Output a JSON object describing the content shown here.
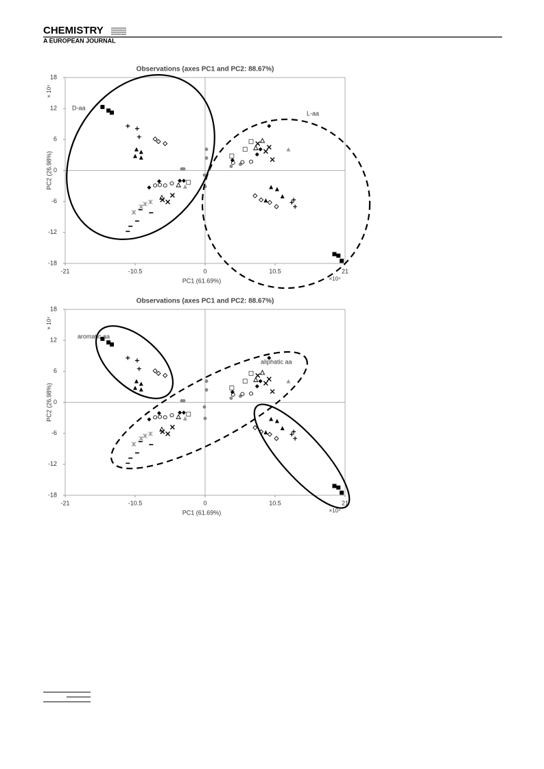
{
  "header": {
    "title": "CHEMISTRY",
    "subtitle": "A EUROPEAN JOURNAL"
  },
  "chart_data": [
    {
      "type": "scatter",
      "title": "Observations (axes PC1 and PC2: 88.67%)",
      "x_label": "PC1 (61.69%)",
      "y_label": "PC2 (26.98%)",
      "x_multiplier": "×10⁴",
      "y_multiplier": "× 10⁴",
      "annotations": [
        "D-aa",
        "L-aa"
      ],
      "xlim": [
        -21,
        21
      ],
      "ylim": [
        -18,
        18
      ],
      "xticks": [
        -21,
        -10.5,
        0,
        10.5,
        21
      ],
      "yticks": [
        -18,
        -12,
        -6,
        0,
        6,
        12,
        18
      ],
      "series": [
        {
          "marker": "square",
          "color": "#000000",
          "x": [
            -15.4,
            -14.5,
            -14.0,
            19.4,
            20.0,
            20.5
          ],
          "y": [
            12.3,
            11.6,
            11.2,
            -16.2,
            -16.5,
            -17.5
          ]
        },
        {
          "marker": "plus",
          "color": "#000000",
          "x": [
            -11.6,
            -10.2,
            -9.9,
            13.0,
            13.5,
            13.3
          ],
          "y": [
            8.6,
            8.1,
            6.5,
            -6.2,
            -7.0,
            -5.7
          ]
        },
        {
          "marker": "triangle",
          "color": "#000000",
          "x": [
            -10.3,
            -9.6,
            -10.5,
            -9.6,
            9.9,
            10.8,
            11.6,
            9.1
          ],
          "y": [
            4.1,
            3.6,
            2.8,
            2.5,
            -3.2,
            -3.6,
            -5.0,
            -5.8
          ]
        },
        {
          "marker": "diamond-open",
          "color": "#000000",
          "x": [
            -7.5,
            -7.0,
            -6.0,
            7.5,
            8.4,
            9.7,
            10.7
          ],
          "y": [
            6.1,
            5.6,
            5.2,
            -4.9,
            -5.7,
            -6.2,
            -7.0
          ]
        },
        {
          "marker": "circle",
          "color": "#888888",
          "x": [
            -3.5,
            -3.2,
            0.2,
            0.2,
            -0.1,
            0.0,
            3.9,
            5.3
          ],
          "y": [
            0.3,
            0.3,
            4.1,
            2.4,
            -0.9,
            -3.1,
            0.8,
            1.2
          ]
        },
        {
          "marker": "dash",
          "color": "#000000",
          "x": [
            -9.7,
            -10.2,
            -11.2,
            -11.6,
            -8.1
          ],
          "y": [
            -7.6,
            -9.8,
            -10.8,
            -11.8,
            -8.2
          ]
        },
        {
          "marker": "asterisk",
          "color": "#888888",
          "x": [
            -9.0,
            -9.6,
            -10.7,
            -8.2
          ],
          "y": [
            -6.5,
            -7.0,
            -8.1,
            -6.1
          ]
        },
        {
          "marker": "circle-open",
          "color": "#000000",
          "x": [
            -7.5,
            -6.8,
            -6.0,
            -5.0,
            4.2,
            5.6,
            6.9
          ],
          "y": [
            -2.9,
            -2.8,
            -2.9,
            -2.5,
            1.5,
            1.6,
            1.7
          ]
        },
        {
          "marker": "diamond",
          "color": "#000000",
          "x": [
            -8.4,
            -6.9,
            -3.8,
            -3.2,
            4.1,
            7.8,
            8.3,
            9.6
          ],
          "y": [
            -3.3,
            -2.1,
            -2.0,
            -2.0,
            2.0,
            3.1,
            4.1,
            8.6
          ]
        },
        {
          "marker": "x",
          "color": "#000000",
          "x": [
            -6.4,
            -5.6,
            -4.9,
            7.9,
            9.1,
            9.6,
            10.1
          ],
          "y": [
            -5.7,
            -6.1,
            -4.8,
            5.2,
            3.7,
            4.5,
            2.1
          ]
        },
        {
          "marker": "triangle-open",
          "color": "#000000",
          "x": [
            -6.5,
            -4.0,
            7.6,
            8.6
          ],
          "y": [
            -5.2,
            -2.8,
            4.4,
            5.8
          ]
        },
        {
          "marker": "square-open",
          "color": "#555555",
          "x": [
            -2.5,
            4.0,
            6.0,
            6.9
          ],
          "y": [
            -2.3,
            2.8,
            4.1,
            5.6
          ]
        },
        {
          "marker": "triangle",
          "color": "#999999",
          "x": [
            -3.0,
            12.5
          ],
          "y": [
            -3.1,
            4.1
          ]
        }
      ]
    },
    {
      "type": "scatter",
      "title": "Observations (axes PC1 and PC2: 88.67%)",
      "x_label": "PC1 (61.69%)",
      "y_label": "PC2 (26.98%)",
      "x_multiplier": "×10⁴",
      "y_multiplier": "× 10⁴",
      "annotations": [
        "aromatic aa",
        "aliphatic aa"
      ],
      "xlim": [
        -21,
        21
      ],
      "ylim": [
        -18,
        18
      ],
      "xticks": [
        -21,
        -10.5,
        0,
        10.5,
        21
      ],
      "yticks": [
        -18,
        -12,
        -6,
        0,
        6,
        12,
        18
      ],
      "series": [
        {
          "marker": "square",
          "color": "#000000",
          "x": [
            -15.4,
            -14.5,
            -14.0,
            19.4,
            20.0,
            20.5
          ],
          "y": [
            12.3,
            11.6,
            11.2,
            -16.2,
            -16.5,
            -17.5
          ]
        },
        {
          "marker": "plus",
          "color": "#000000",
          "x": [
            -11.6,
            -10.2,
            -9.9,
            13.0,
            13.5,
            13.3
          ],
          "y": [
            8.6,
            8.1,
            6.5,
            -6.2,
            -7.0,
            -5.7
          ]
        },
        {
          "marker": "triangle",
          "color": "#000000",
          "x": [
            -10.3,
            -9.6,
            -10.5,
            -9.6,
            9.9,
            10.8,
            11.6,
            9.1
          ],
          "y": [
            4.1,
            3.6,
            2.8,
            2.5,
            -3.2,
            -3.6,
            -5.0,
            -5.8
          ]
        },
        {
          "marker": "diamond-open",
          "color": "#000000",
          "x": [
            -7.5,
            -7.0,
            -6.0,
            7.5,
            8.4,
            9.7,
            10.7
          ],
          "y": [
            6.1,
            5.6,
            5.2,
            -4.9,
            -5.7,
            -6.2,
            -7.0
          ]
        },
        {
          "marker": "circle",
          "color": "#888888",
          "x": [
            -3.5,
            -3.2,
            0.2,
            0.2,
            -0.1,
            0.0,
            3.9,
            5.3
          ],
          "y": [
            0.3,
            0.3,
            4.1,
            2.4,
            -0.9,
            -3.1,
            0.8,
            1.2
          ]
        },
        {
          "marker": "dash",
          "color": "#000000",
          "x": [
            -9.7,
            -10.2,
            -11.2,
            -11.6,
            -8.1
          ],
          "y": [
            -7.6,
            -9.8,
            -10.8,
            -11.8,
            -8.2
          ]
        },
        {
          "marker": "asterisk",
          "color": "#888888",
          "x": [
            -9.0,
            -9.6,
            -10.7,
            -8.2
          ],
          "y": [
            -6.5,
            -7.0,
            -8.1,
            -6.1
          ]
        },
        {
          "marker": "circle-open",
          "color": "#000000",
          "x": [
            -7.5,
            -6.8,
            -6.0,
            -5.0,
            4.2,
            5.6,
            6.9
          ],
          "y": [
            -2.9,
            -2.8,
            -2.9,
            -2.5,
            1.5,
            1.6,
            1.7
          ]
        },
        {
          "marker": "diamond",
          "color": "#000000",
          "x": [
            -8.4,
            -6.9,
            -3.8,
            -3.2,
            4.1,
            7.8,
            8.3,
            9.6
          ],
          "y": [
            -3.3,
            -2.1,
            -2.0,
            -2.0,
            2.0,
            3.1,
            4.1,
            8.6
          ]
        },
        {
          "marker": "x",
          "color": "#000000",
          "x": [
            -6.4,
            -5.6,
            -4.9,
            7.9,
            9.1,
            9.6,
            10.1
          ],
          "y": [
            -5.7,
            -6.1,
            -4.8,
            5.2,
            3.7,
            4.5,
            2.1
          ]
        },
        {
          "marker": "triangle-open",
          "color": "#000000",
          "x": [
            -6.5,
            -4.0,
            7.6,
            8.6
          ],
          "y": [
            -5.2,
            -2.8,
            4.4,
            5.8
          ]
        },
        {
          "marker": "square-open",
          "color": "#555555",
          "x": [
            -2.5,
            4.0,
            6.0,
            6.9
          ],
          "y": [
            -2.3,
            2.8,
            4.1,
            5.6
          ]
        },
        {
          "marker": "triangle",
          "color": "#999999",
          "x": [
            -3.0,
            12.5
          ],
          "y": [
            -3.1,
            4.1
          ]
        }
      ]
    }
  ]
}
